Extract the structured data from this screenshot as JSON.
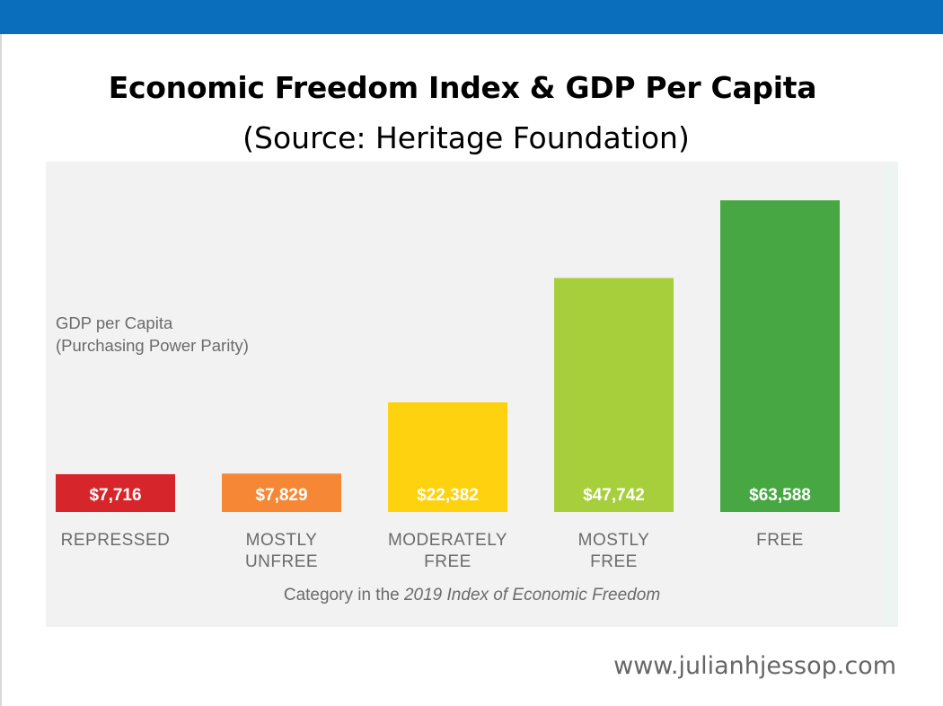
{
  "slide": {
    "title": "Economic Freedom Index & GDP Per Capita",
    "subtitle": "(Source: Heritage Foundation)",
    "website": "www.julianhjessop.com",
    "header_color": "#0a6ebd"
  },
  "chart_data": {
    "type": "bar",
    "ylabel_lines": [
      "GDP per Capita",
      "(Purchasing Power Parity)"
    ],
    "xlabel_prefix": "Category in the ",
    "xlabel_italic": "2019 Index of Economic Freedom",
    "categories": [
      [
        "REPRESSED"
      ],
      [
        "MOSTLY",
        "UNFREE"
      ],
      [
        "MODERATELY",
        "FREE"
      ],
      [
        "MOSTLY",
        "FREE"
      ],
      [
        "FREE"
      ]
    ],
    "values": [
      7716,
      7829,
      22382,
      47742,
      63588
    ],
    "value_labels": [
      "$7,716",
      "$7,829",
      "$22,382",
      "$47,742",
      "$63,588"
    ],
    "colors": [
      "#d7262b",
      "#f58735",
      "#fed20e",
      "#a7cf3c",
      "#47a843"
    ],
    "grid": false,
    "legend": "none"
  }
}
